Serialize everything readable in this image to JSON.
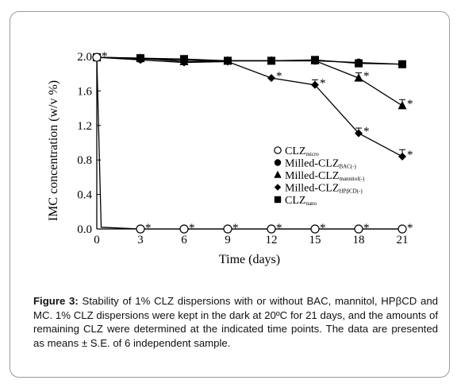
{
  "chart_data": {
    "type": "line",
    "xlabel": "Time (days)",
    "ylabel": "IMC concentration (w/v %)",
    "x": [
      0,
      3,
      6,
      9,
      12,
      15,
      18,
      21
    ],
    "xticks": [
      "0",
      "3",
      "6",
      "9",
      "12",
      "15",
      "18",
      "21"
    ],
    "yticks": [
      "0.0",
      "0.4",
      "0.8",
      "1.2",
      "1.6",
      "2.0"
    ],
    "xlim": [
      0,
      21
    ],
    "ylim": [
      0,
      2.0
    ],
    "grid": false,
    "legend_position": "right",
    "series": [
      {
        "name": "CLZ",
        "name_sub": "micro",
        "marker": "circle-open",
        "x": [
          0,
          0.3,
          3,
          6,
          9,
          12,
          15,
          18,
          21
        ],
        "values": [
          1.99,
          0.02,
          0.0,
          0.0,
          0.0,
          0.0,
          0.0,
          0.0,
          0.0
        ]
      },
      {
        "name": "Milled-CLZ",
        "name_sub": "BAC(-)",
        "marker": "circle-filled",
        "x": [
          0,
          3,
          6,
          9,
          12,
          15,
          18,
          21
        ],
        "values": [
          1.99,
          1.97,
          1.96,
          1.95,
          1.95,
          1.95,
          1.93,
          1.91
        ]
      },
      {
        "name": "Milled-CLZ",
        "name_sub": "mannitol(-)",
        "marker": "triangle",
        "x": [
          0,
          3,
          6,
          9,
          12,
          15,
          18,
          21
        ],
        "values": [
          1.99,
          1.98,
          1.94,
          1.95,
          1.95,
          1.95,
          1.75,
          1.43
        ]
      },
      {
        "name": "Milled-CLZ",
        "name_sub": "HPβCD(-)",
        "marker": "diamond",
        "x": [
          0,
          3,
          6,
          9,
          12,
          15,
          18,
          21
        ],
        "values": [
          1.99,
          1.96,
          1.93,
          1.94,
          1.75,
          1.67,
          1.11,
          0.84
        ]
      },
      {
        "name": "CLZ",
        "name_sub": "nano",
        "marker": "square",
        "x": [
          0,
          3,
          6,
          9,
          12,
          15,
          18,
          21
        ],
        "values": [
          1.99,
          1.98,
          1.97,
          1.95,
          1.95,
          1.96,
          1.92,
          1.91
        ]
      }
    ],
    "annotations": [
      {
        "text": "*",
        "series": 0,
        "x": 0
      },
      {
        "text": "*",
        "series": 0,
        "x": 3
      },
      {
        "text": "*",
        "series": 0,
        "x": 6
      },
      {
        "text": "*",
        "series": 0,
        "x": 9
      },
      {
        "text": "*",
        "series": 0,
        "x": 12
      },
      {
        "text": "*",
        "series": 0,
        "x": 15
      },
      {
        "text": "*",
        "series": 0,
        "x": 18
      },
      {
        "text": "*",
        "series": 0,
        "x": 21
      },
      {
        "text": "*",
        "series": 3,
        "x": 12
      },
      {
        "text": "*",
        "series": 3,
        "x": 15
      },
      {
        "text": "*",
        "series": 3,
        "x": 18
      },
      {
        "text": "*",
        "series": 3,
        "x": 21
      },
      {
        "text": "*",
        "series": 2,
        "x": 18
      },
      {
        "text": "*",
        "series": 2,
        "x": 21
      }
    ],
    "error_bars": [
      {
        "series": 3,
        "x": 15,
        "err": 0.06
      },
      {
        "series": 3,
        "x": 18,
        "err": 0.06
      },
      {
        "series": 3,
        "x": 21,
        "err": 0.08
      },
      {
        "series": 2,
        "x": 18,
        "err": 0.06
      },
      {
        "series": 2,
        "x": 21,
        "err": 0.07
      }
    ]
  },
  "caption": {
    "label": "Figure 3:",
    "text": " Stability of 1% CLZ dispersions with or without BAC, mannitol, HPβCD and MC. 1% CLZ dispersions were kept in the dark at 20ºC for 21 days, and the amounts of remaining CLZ were determined at the indicated time points. The data are presented as means ± S.E. of 6 independent sample."
  }
}
